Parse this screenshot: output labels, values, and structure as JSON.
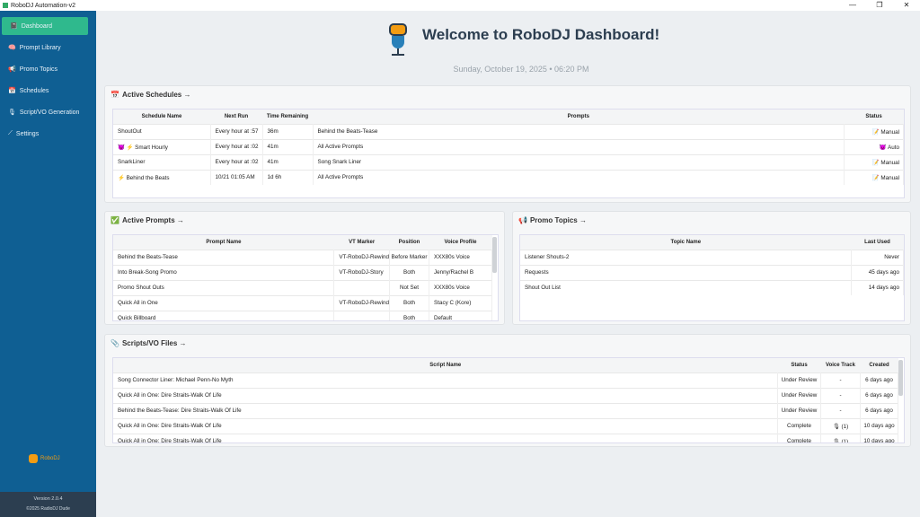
{
  "window": {
    "title": "RoboDJ Automation-v2",
    "controls": [
      "—",
      "❐",
      "✕"
    ]
  },
  "sidebar": {
    "items": [
      {
        "icon": "📓",
        "label": "Dashboard",
        "active": true
      },
      {
        "icon": "🧠",
        "label": "Prompt Library"
      },
      {
        "icon": "📢",
        "label": "Promo Topics"
      },
      {
        "icon": "📅",
        "label": "Schedules"
      },
      {
        "icon": "🎙",
        "label": "Script/VO Generation"
      },
      {
        "icon": "⟋",
        "label": "Settings"
      }
    ],
    "logo_text": "RoboDJ",
    "version": "Version 2.0.4",
    "copyright": "©2025 RadioDJ Dude"
  },
  "header": {
    "title": "Welcome to RoboDJ Dashboard!",
    "date": "Sunday, October 19, 2025 • 06:20 PM"
  },
  "schedules": {
    "title": "Active Schedules →",
    "columns": [
      "Schedule Name",
      "Next Run",
      "Time Remaining",
      "Prompts",
      "Status"
    ],
    "rows": [
      [
        "ShoutOut",
        "Every hour at :57",
        "36m",
        "Behind the Beats-Tease",
        "📝 Manual"
      ],
      [
        "😈 ⚡ Smart Hourly",
        "Every hour at :02",
        "41m",
        "All Active Prompts",
        "😈 Auto"
      ],
      [
        "SnarkLiner",
        "Every hour at :02",
        "41m",
        "Song Snark Liner",
        "📝 Manual"
      ],
      [
        "⚡ Behind the Beats",
        "10/21 01:05 AM",
        "1d 6h",
        "All Active Prompts",
        "📝 Manual"
      ]
    ]
  },
  "prompts": {
    "title": "Active Prompts →",
    "columns": [
      "Prompt Name",
      "VT Marker",
      "Position",
      "Voice Profile"
    ],
    "rows": [
      [
        "Behind the Beats-Tease",
        "VT-RoboDJ-Rewind",
        "Before Marker",
        "XXX80s Voice"
      ],
      [
        "Into Break-Song Promo",
        "VT-RoboDJ-Story",
        "Both",
        "Jenny/Rachel B"
      ],
      [
        "Promo Shout Outs",
        "",
        "Not Set",
        "XXX80s Voice"
      ],
      [
        "Quick All in One",
        "VT-RoboDJ-Rewind",
        "Both",
        "Stacy C (Kore)"
      ],
      [
        "Quick Billboard",
        "",
        "Both",
        "Default"
      ]
    ]
  },
  "topics": {
    "title": "Promo Topics →",
    "columns": [
      "Topic Name",
      "Last Used"
    ],
    "rows": [
      [
        "Listener Shouts-2",
        "Never"
      ],
      [
        "Requests",
        "45 days ago"
      ],
      [
        "Shout Out List",
        "14 days ago"
      ]
    ]
  },
  "scripts": {
    "title": "Scripts/VO Files →",
    "columns": [
      "Script Name",
      "Status",
      "Voice Track",
      "Created"
    ],
    "rows": [
      [
        "Song Connector Liner: Michael Penn-No Myth",
        "Under Review",
        "-",
        "6 days ago"
      ],
      [
        "Quick All in One: Dire Straits-Walk Of Life",
        "Under Review",
        "-",
        "6 days ago"
      ],
      [
        "Behind the Beats-Tease: Dire Straits-Walk Of Life",
        "Under Review",
        "-",
        "6 days ago"
      ],
      [
        "Quick All in One: Dire Straits-Walk Of Life",
        "Complete",
        "🎙 (1)",
        "10 days ago"
      ],
      [
        "Quick All in One: Dire Straits-Walk Of Life",
        "Complete",
        "🎙 (1)",
        "10 days ago"
      ]
    ]
  },
  "colors": {
    "sidebar": "#0f5f93",
    "active": "#2fb98d",
    "footer": "#2c3e50",
    "accent": "#f39c12"
  }
}
